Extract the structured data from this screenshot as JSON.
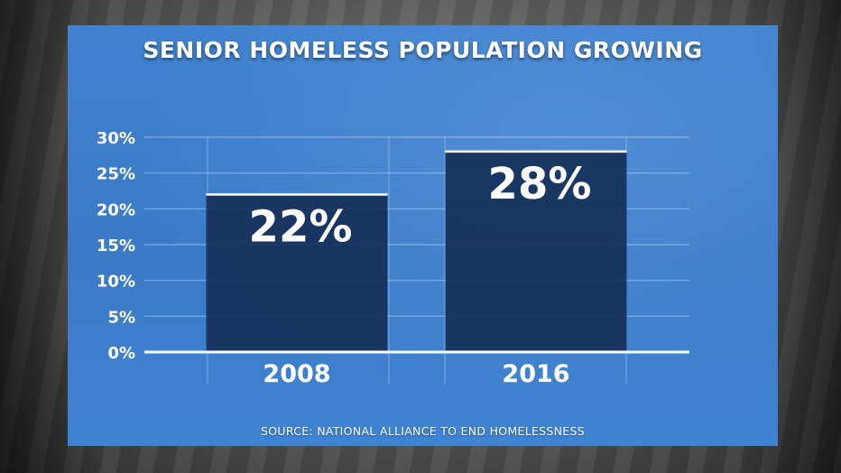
{
  "chart_data": {
    "type": "bar",
    "title": "SENIOR HOMELESS POPULATION GROWING",
    "categories": [
      "2008",
      "2016"
    ],
    "values": [
      22,
      28
    ],
    "data_labels": [
      "22%",
      "28%"
    ],
    "y_ticks": [
      "0%",
      "5%",
      "10%",
      "15%",
      "20%",
      "25%",
      "30%"
    ],
    "ylim": [
      0,
      30
    ],
    "xlabel": "",
    "ylabel": "",
    "grid": true,
    "source": "SOURCE: NATIONAL ALLIANCE TO END HOMELESSNESS",
    "colors": {
      "panel": "#3b7ac6",
      "bar_fill": "#16305a",
      "bar_top": "#ffffff",
      "grid": "#c9dcf2",
      "text": "#ffffff"
    }
  }
}
